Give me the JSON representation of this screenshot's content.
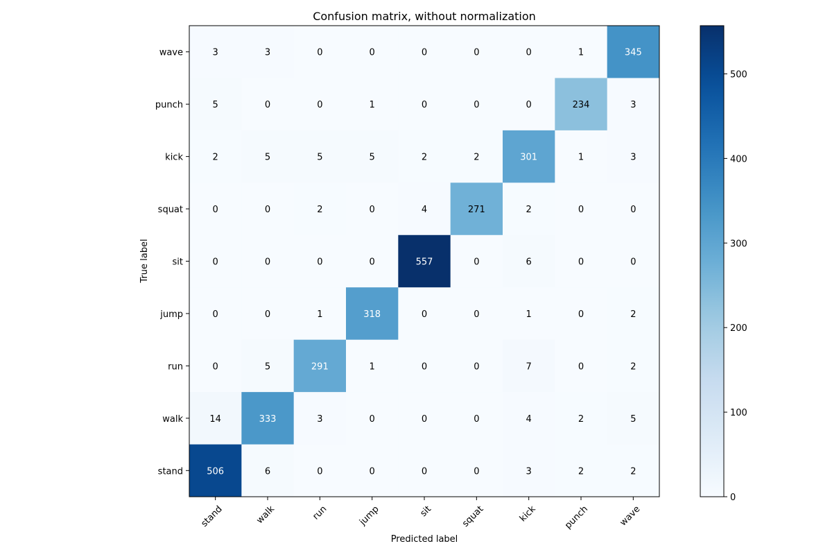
{
  "chart_data": {
    "type": "heatmap",
    "title": "Confusion matrix, without normalization",
    "xlabel": "Predicted label",
    "ylabel": "True label",
    "x_categories": [
      "stand",
      "walk",
      "run",
      "jump",
      "sit",
      "squat",
      "kick",
      "punch",
      "wave"
    ],
    "y_categories": [
      "wave",
      "punch",
      "kick",
      "squat",
      "sit",
      "jump",
      "run",
      "walk",
      "stand"
    ],
    "values": [
      [
        3,
        3,
        0,
        0,
        0,
        0,
        0,
        1,
        345
      ],
      [
        5,
        0,
        0,
        1,
        0,
        0,
        0,
        234,
        3
      ],
      [
        2,
        5,
        5,
        5,
        2,
        2,
        301,
        1,
        3
      ],
      [
        0,
        0,
        2,
        0,
        4,
        271,
        2,
        0,
        0
      ],
      [
        0,
        0,
        0,
        0,
        557,
        0,
        6,
        0,
        0
      ],
      [
        0,
        0,
        1,
        318,
        0,
        0,
        1,
        0,
        2
      ],
      [
        0,
        5,
        291,
        1,
        0,
        0,
        7,
        0,
        2
      ],
      [
        14,
        333,
        3,
        0,
        0,
        0,
        4,
        2,
        5
      ],
      [
        506,
        6,
        0,
        0,
        0,
        0,
        3,
        2,
        2
      ]
    ],
    "colormap": "Blues",
    "vmin": 0,
    "vmax": 557,
    "colorbar_ticks": [
      0,
      100,
      200,
      300,
      400,
      500
    ],
    "text_color_light": "#ffffff",
    "text_color_dark": "#000000",
    "grid": false
  }
}
